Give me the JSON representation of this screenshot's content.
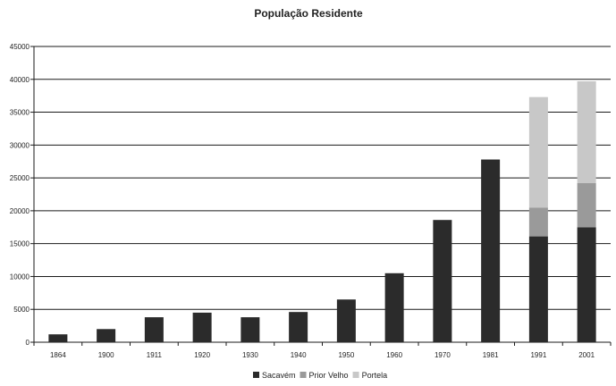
{
  "chart_data": {
    "type": "bar",
    "stacked": true,
    "title": "População Residente",
    "categories": [
      "1864",
      "1900",
      "1911",
      "1920",
      "1930",
      "1940",
      "1950",
      "1960",
      "1970",
      "1981",
      "1991",
      "2001"
    ],
    "series": [
      {
        "name": "Sacavém",
        "color": "#2b2b2b",
        "values": [
          1200,
          2000,
          3800,
          4500,
          3800,
          4600,
          6500,
          10500,
          18600,
          27800,
          16100,
          17500
        ]
      },
      {
        "name": "Prior Velho",
        "color": "#9a9a9a",
        "values": [
          0,
          0,
          0,
          0,
          0,
          0,
          0,
          0,
          0,
          0,
          4400,
          6700
        ]
      },
      {
        "name": "Portela",
        "color": "#c8c8c8",
        "values": [
          0,
          0,
          0,
          0,
          0,
          0,
          0,
          0,
          0,
          0,
          16800,
          15500
        ]
      }
    ],
    "ylim": [
      0,
      45000
    ],
    "yticks": [
      "0",
      "5000",
      "10000",
      "15000",
      "20000",
      "25000",
      "30000",
      "35000",
      "40000",
      "45000"
    ],
    "grid": true,
    "legend_position": "bottom"
  }
}
